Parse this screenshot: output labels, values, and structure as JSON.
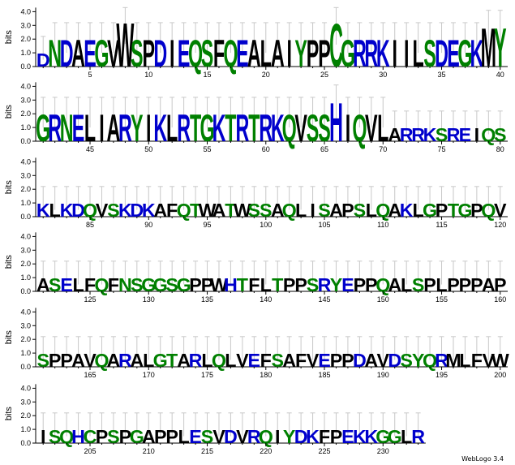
{
  "chart_data": {
    "type": "sequence_logo",
    "ylabel": "bits",
    "ylim": [
      0,
      4.3
    ],
    "yticks": [
      "0.0",
      "1.0",
      "2.0",
      "3.0",
      "4.0"
    ],
    "residues_per_row": 40,
    "colors": {
      "polar": "#008000",
      "basic": "#0000cc",
      "acidic": "#0000cc",
      "hydrophobic": "#000000"
    },
    "positions": [
      {
        "pos": 1,
        "aa": "D",
        "bits": 1.0
      },
      {
        "pos": 2,
        "aa": "N",
        "bits": 2.0
      },
      {
        "pos": 3,
        "aa": "D",
        "bits": 2.0
      },
      {
        "pos": 4,
        "aa": "A",
        "bits": 2.0
      },
      {
        "pos": 5,
        "aa": "E",
        "bits": 2.0
      },
      {
        "pos": 6,
        "aa": "G",
        "bits": 2.0
      },
      {
        "pos": 7,
        "aa": "V",
        "bits": 2.0
      },
      {
        "pos": 8,
        "aa": "W",
        "bits": 3.3
      },
      {
        "pos": 9,
        "aa": "S",
        "bits": 2.0
      },
      {
        "pos": 10,
        "aa": "P",
        "bits": 2.0
      },
      {
        "pos": 11,
        "aa": "D",
        "bits": 2.0
      },
      {
        "pos": 12,
        "aa": "I",
        "bits": 2.0
      },
      {
        "pos": 13,
        "aa": "E",
        "bits": 2.0
      },
      {
        "pos": 14,
        "aa": "Q",
        "bits": 2.0
      },
      {
        "pos": 15,
        "aa": "S",
        "bits": 2.0
      },
      {
        "pos": 16,
        "aa": "F",
        "bits": 2.0
      },
      {
        "pos": 17,
        "aa": "Q",
        "bits": 2.0
      },
      {
        "pos": 18,
        "aa": "E",
        "bits": 2.0
      },
      {
        "pos": 19,
        "aa": "A",
        "bits": 2.0
      },
      {
        "pos": 20,
        "aa": "L",
        "bits": 2.0
      },
      {
        "pos": 21,
        "aa": "A",
        "bits": 2.0
      },
      {
        "pos": 22,
        "aa": "I",
        "bits": 2.0
      },
      {
        "pos": 23,
        "aa": "Y",
        "bits": 2.0
      },
      {
        "pos": 24,
        "aa": "P",
        "bits": 2.0
      },
      {
        "pos": 25,
        "aa": "P",
        "bits": 2.0
      },
      {
        "pos": 26,
        "aa": "C",
        "bits": 3.2
      },
      {
        "pos": 27,
        "aa": "G",
        "bits": 2.0
      },
      {
        "pos": 28,
        "aa": "R",
        "bits": 2.0
      },
      {
        "pos": 29,
        "aa": "R",
        "bits": 2.0
      },
      {
        "pos": 30,
        "aa": "K",
        "bits": 2.0
      },
      {
        "pos": 31,
        "aa": "I",
        "bits": 2.0
      },
      {
        "pos": 32,
        "aa": "I",
        "bits": 2.0
      },
      {
        "pos": 33,
        "aa": "L",
        "bits": 2.0
      },
      {
        "pos": 34,
        "aa": "S",
        "bits": 2.0
      },
      {
        "pos": 35,
        "aa": "D",
        "bits": 2.0
      },
      {
        "pos": 36,
        "aa": "E",
        "bits": 2.0
      },
      {
        "pos": 37,
        "aa": "G",
        "bits": 2.0
      },
      {
        "pos": 38,
        "aa": "K",
        "bits": 2.0
      },
      {
        "pos": 39,
        "aa": "M",
        "bits": 2.9
      },
      {
        "pos": 40,
        "aa": "Y",
        "bits": 2.9
      },
      {
        "pos": 41,
        "aa": "G",
        "bits": 2.0
      },
      {
        "pos": 42,
        "aa": "R",
        "bits": 2.0
      },
      {
        "pos": 43,
        "aa": "N",
        "bits": 2.0
      },
      {
        "pos": 44,
        "aa": "E",
        "bits": 2.0
      },
      {
        "pos": 45,
        "aa": "L",
        "bits": 2.0
      },
      {
        "pos": 46,
        "aa": "I",
        "bits": 2.0
      },
      {
        "pos": 47,
        "aa": "A",
        "bits": 2.0
      },
      {
        "pos": 48,
        "aa": "R",
        "bits": 2.0
      },
      {
        "pos": 49,
        "aa": "Y",
        "bits": 2.0
      },
      {
        "pos": 50,
        "aa": "I",
        "bits": 2.0
      },
      {
        "pos": 51,
        "aa": "K",
        "bits": 2.0
      },
      {
        "pos": 52,
        "aa": "L",
        "bits": 2.0
      },
      {
        "pos": 53,
        "aa": "R",
        "bits": 2.0
      },
      {
        "pos": 54,
        "aa": "T",
        "bits": 2.0
      },
      {
        "pos": 55,
        "aa": "G",
        "bits": 2.0
      },
      {
        "pos": 56,
        "aa": "K",
        "bits": 2.0
      },
      {
        "pos": 57,
        "aa": "T",
        "bits": 2.0
      },
      {
        "pos": 58,
        "aa": "R",
        "bits": 2.0
      },
      {
        "pos": 59,
        "aa": "T",
        "bits": 2.0
      },
      {
        "pos": 60,
        "aa": "R",
        "bits": 2.0
      },
      {
        "pos": 61,
        "aa": "K",
        "bits": 2.0
      },
      {
        "pos": 62,
        "aa": "Q",
        "bits": 2.0
      },
      {
        "pos": 63,
        "aa": "V",
        "bits": 2.0
      },
      {
        "pos": 64,
        "aa": "S",
        "bits": 2.0
      },
      {
        "pos": 65,
        "aa": "S",
        "bits": 2.0
      },
      {
        "pos": 66,
        "aa": "H",
        "bits": 2.9
      },
      {
        "pos": 67,
        "aa": "I",
        "bits": 2.0
      },
      {
        "pos": 68,
        "aa": "Q",
        "bits": 2.0
      },
      {
        "pos": 69,
        "aa": "V",
        "bits": 2.0
      },
      {
        "pos": 70,
        "aa": "L",
        "bits": 2.0
      },
      {
        "pos": 71,
        "aa": "A",
        "bits": 1.0
      },
      {
        "pos": 72,
        "aa": "R",
        "bits": 1.0
      },
      {
        "pos": 73,
        "aa": "R",
        "bits": 1.0
      },
      {
        "pos": 74,
        "aa": "K",
        "bits": 1.0
      },
      {
        "pos": 75,
        "aa": "S",
        "bits": 1.0
      },
      {
        "pos": 76,
        "aa": "R",
        "bits": 1.0
      },
      {
        "pos": 77,
        "aa": "E",
        "bits": 1.0
      },
      {
        "pos": 78,
        "aa": "I",
        "bits": 1.0
      },
      {
        "pos": 79,
        "aa": "Q",
        "bits": 1.0
      },
      {
        "pos": 80,
        "aa": "S",
        "bits": 1.0
      },
      {
        "pos": 81,
        "aa": "K",
        "bits": 1.0
      },
      {
        "pos": 82,
        "aa": "L",
        "bits": 1.0
      },
      {
        "pos": 83,
        "aa": "K",
        "bits": 1.0
      },
      {
        "pos": 84,
        "aa": "D",
        "bits": 1.0
      },
      {
        "pos": 85,
        "aa": "Q",
        "bits": 1.0
      },
      {
        "pos": 86,
        "aa": "V",
        "bits": 1.0
      },
      {
        "pos": 87,
        "aa": "S",
        "bits": 1.0
      },
      {
        "pos": 88,
        "aa": "K",
        "bits": 1.0
      },
      {
        "pos": 89,
        "aa": "D",
        "bits": 1.0
      },
      {
        "pos": 90,
        "aa": "K",
        "bits": 1.0
      },
      {
        "pos": 91,
        "aa": "A",
        "bits": 1.0
      },
      {
        "pos": 92,
        "aa": "F",
        "bits": 1.0
      },
      {
        "pos": 93,
        "aa": "Q",
        "bits": 1.0
      },
      {
        "pos": 94,
        "aa": "T",
        "bits": 1.0
      },
      {
        "pos": 95,
        "aa": "W",
        "bits": 1.0
      },
      {
        "pos": 96,
        "aa": "A",
        "bits": 1.0
      },
      {
        "pos": 97,
        "aa": "T",
        "bits": 1.0
      },
      {
        "pos": 98,
        "aa": "W",
        "bits": 1.0
      },
      {
        "pos": 99,
        "aa": "S",
        "bits": 1.0
      },
      {
        "pos": 100,
        "aa": "S",
        "bits": 1.0
      },
      {
        "pos": 101,
        "aa": "A",
        "bits": 1.0
      },
      {
        "pos": 102,
        "aa": "Q",
        "bits": 1.0
      },
      {
        "pos": 103,
        "aa": "L",
        "bits": 1.0
      },
      {
        "pos": 104,
        "aa": "I",
        "bits": 1.0
      },
      {
        "pos": 105,
        "aa": "S",
        "bits": 1.0
      },
      {
        "pos": 106,
        "aa": "A",
        "bits": 1.0
      },
      {
        "pos": 107,
        "aa": "P",
        "bits": 1.0
      },
      {
        "pos": 108,
        "aa": "S",
        "bits": 1.0
      },
      {
        "pos": 109,
        "aa": "L",
        "bits": 1.0
      },
      {
        "pos": 110,
        "aa": "Q",
        "bits": 1.0
      },
      {
        "pos": 111,
        "aa": "A",
        "bits": 1.0
      },
      {
        "pos": 112,
        "aa": "K",
        "bits": 1.0
      },
      {
        "pos": 113,
        "aa": "L",
        "bits": 1.0
      },
      {
        "pos": 114,
        "aa": "G",
        "bits": 1.0
      },
      {
        "pos": 115,
        "aa": "P",
        "bits": 1.0
      },
      {
        "pos": 116,
        "aa": "T",
        "bits": 1.0
      },
      {
        "pos": 117,
        "aa": "G",
        "bits": 1.0
      },
      {
        "pos": 118,
        "aa": "P",
        "bits": 1.0
      },
      {
        "pos": 119,
        "aa": "Q",
        "bits": 1.0
      },
      {
        "pos": 120,
        "aa": "V",
        "bits": 1.0
      },
      {
        "pos": 121,
        "aa": "A",
        "bits": 1.0
      },
      {
        "pos": 122,
        "aa": "S",
        "bits": 1.0
      },
      {
        "pos": 123,
        "aa": "E",
        "bits": 1.0
      },
      {
        "pos": 124,
        "aa": "L",
        "bits": 1.0
      },
      {
        "pos": 125,
        "aa": "F",
        "bits": 1.0
      },
      {
        "pos": 126,
        "aa": "Q",
        "bits": 1.0
      },
      {
        "pos": 127,
        "aa": "F",
        "bits": 1.0
      },
      {
        "pos": 128,
        "aa": "N",
        "bits": 1.0
      },
      {
        "pos": 129,
        "aa": "S",
        "bits": 1.0
      },
      {
        "pos": 130,
        "aa": "G",
        "bits": 1.0
      },
      {
        "pos": 131,
        "aa": "G",
        "bits": 1.0
      },
      {
        "pos": 132,
        "aa": "S",
        "bits": 1.0
      },
      {
        "pos": 133,
        "aa": "G",
        "bits": 1.0
      },
      {
        "pos": 134,
        "aa": "P",
        "bits": 1.0
      },
      {
        "pos": 135,
        "aa": "P",
        "bits": 1.0
      },
      {
        "pos": 136,
        "aa": "W",
        "bits": 1.0
      },
      {
        "pos": 137,
        "aa": "H",
        "bits": 1.0
      },
      {
        "pos": 138,
        "aa": "T",
        "bits": 1.0
      },
      {
        "pos": 139,
        "aa": "F",
        "bits": 1.0
      },
      {
        "pos": 140,
        "aa": "L",
        "bits": 1.0
      },
      {
        "pos": 141,
        "aa": "T",
        "bits": 1.0
      },
      {
        "pos": 142,
        "aa": "P",
        "bits": 1.0
      },
      {
        "pos": 143,
        "aa": "P",
        "bits": 1.0
      },
      {
        "pos": 144,
        "aa": "S",
        "bits": 1.0
      },
      {
        "pos": 145,
        "aa": "R",
        "bits": 1.0
      },
      {
        "pos": 146,
        "aa": "Y",
        "bits": 1.0
      },
      {
        "pos": 147,
        "aa": "E",
        "bits": 1.0
      },
      {
        "pos": 148,
        "aa": "P",
        "bits": 1.0
      },
      {
        "pos": 149,
        "aa": "P",
        "bits": 1.0
      },
      {
        "pos": 150,
        "aa": "Q",
        "bits": 1.0
      },
      {
        "pos": 151,
        "aa": "A",
        "bits": 1.0
      },
      {
        "pos": 152,
        "aa": "L",
        "bits": 1.0
      },
      {
        "pos": 153,
        "aa": "S",
        "bits": 1.0
      },
      {
        "pos": 154,
        "aa": "P",
        "bits": 1.0
      },
      {
        "pos": 155,
        "aa": "L",
        "bits": 1.0
      },
      {
        "pos": 156,
        "aa": "P",
        "bits": 1.0
      },
      {
        "pos": 157,
        "aa": "P",
        "bits": 1.0
      },
      {
        "pos": 158,
        "aa": "P",
        "bits": 1.0
      },
      {
        "pos": 159,
        "aa": "A",
        "bits": 1.0
      },
      {
        "pos": 160,
        "aa": "P",
        "bits": 1.0
      },
      {
        "pos": 161,
        "aa": "S",
        "bits": 1.0
      },
      {
        "pos": 162,
        "aa": "P",
        "bits": 1.0
      },
      {
        "pos": 163,
        "aa": "P",
        "bits": 1.0
      },
      {
        "pos": 164,
        "aa": "A",
        "bits": 1.0
      },
      {
        "pos": 165,
        "aa": "V",
        "bits": 1.0
      },
      {
        "pos": 166,
        "aa": "Q",
        "bits": 1.0
      },
      {
        "pos": 167,
        "aa": "A",
        "bits": 1.0
      },
      {
        "pos": 168,
        "aa": "R",
        "bits": 1.0
      },
      {
        "pos": 169,
        "aa": "A",
        "bits": 1.0
      },
      {
        "pos": 170,
        "aa": "L",
        "bits": 1.0
      },
      {
        "pos": 171,
        "aa": "G",
        "bits": 1.0
      },
      {
        "pos": 172,
        "aa": "T",
        "bits": 1.0
      },
      {
        "pos": 173,
        "aa": "A",
        "bits": 1.0
      },
      {
        "pos": 174,
        "aa": "R",
        "bits": 1.0
      },
      {
        "pos": 175,
        "aa": "L",
        "bits": 1.0
      },
      {
        "pos": 176,
        "aa": "Q",
        "bits": 1.0
      },
      {
        "pos": 177,
        "aa": "L",
        "bits": 1.0
      },
      {
        "pos": 178,
        "aa": "V",
        "bits": 1.0
      },
      {
        "pos": 179,
        "aa": "E",
        "bits": 1.0
      },
      {
        "pos": 180,
        "aa": "F",
        "bits": 1.0
      },
      {
        "pos": 181,
        "aa": "S",
        "bits": 1.0
      },
      {
        "pos": 182,
        "aa": "A",
        "bits": 1.0
      },
      {
        "pos": 183,
        "aa": "F",
        "bits": 1.0
      },
      {
        "pos": 184,
        "aa": "V",
        "bits": 1.0
      },
      {
        "pos": 185,
        "aa": "E",
        "bits": 1.0
      },
      {
        "pos": 186,
        "aa": "P",
        "bits": 1.0
      },
      {
        "pos": 187,
        "aa": "P",
        "bits": 1.0
      },
      {
        "pos": 188,
        "aa": "D",
        "bits": 1.0
      },
      {
        "pos": 189,
        "aa": "A",
        "bits": 1.0
      },
      {
        "pos": 190,
        "aa": "V",
        "bits": 1.0
      },
      {
        "pos": 191,
        "aa": "D",
        "bits": 1.0
      },
      {
        "pos": 192,
        "aa": "S",
        "bits": 1.0
      },
      {
        "pos": 193,
        "aa": "Y",
        "bits": 1.0
      },
      {
        "pos": 194,
        "aa": "Q",
        "bits": 1.0
      },
      {
        "pos": 195,
        "aa": "R",
        "bits": 1.0
      },
      {
        "pos": 196,
        "aa": "M",
        "bits": 1.0
      },
      {
        "pos": 197,
        "aa": "L",
        "bits": 1.0
      },
      {
        "pos": 198,
        "aa": "F",
        "bits": 1.0
      },
      {
        "pos": 199,
        "aa": "V",
        "bits": 1.0
      },
      {
        "pos": 200,
        "aa": "W",
        "bits": 1.0
      },
      {
        "pos": 201,
        "aa": "I",
        "bits": 1.0
      },
      {
        "pos": 202,
        "aa": "S",
        "bits": 1.0
      },
      {
        "pos": 203,
        "aa": "Q",
        "bits": 1.0
      },
      {
        "pos": 204,
        "aa": "H",
        "bits": 1.0
      },
      {
        "pos": 205,
        "aa": "C",
        "bits": 1.0
      },
      {
        "pos": 206,
        "aa": "P",
        "bits": 1.0
      },
      {
        "pos": 207,
        "aa": "S",
        "bits": 1.0
      },
      {
        "pos": 208,
        "aa": "P",
        "bits": 1.0
      },
      {
        "pos": 209,
        "aa": "G",
        "bits": 1.0
      },
      {
        "pos": 210,
        "aa": "A",
        "bits": 1.0
      },
      {
        "pos": 211,
        "aa": "P",
        "bits": 1.0
      },
      {
        "pos": 212,
        "aa": "P",
        "bits": 1.0
      },
      {
        "pos": 213,
        "aa": "L",
        "bits": 1.0
      },
      {
        "pos": 214,
        "aa": "E",
        "bits": 1.0
      },
      {
        "pos": 215,
        "aa": "S",
        "bits": 1.0
      },
      {
        "pos": 216,
        "aa": "V",
        "bits": 1.0
      },
      {
        "pos": 217,
        "aa": "D",
        "bits": 1.0
      },
      {
        "pos": 218,
        "aa": "V",
        "bits": 1.0
      },
      {
        "pos": 219,
        "aa": "R",
        "bits": 1.0
      },
      {
        "pos": 220,
        "aa": "Q",
        "bits": 1.0
      },
      {
        "pos": 221,
        "aa": "I",
        "bits": 1.0
      },
      {
        "pos": 222,
        "aa": "Y",
        "bits": 1.0
      },
      {
        "pos": 223,
        "aa": "D",
        "bits": 1.0
      },
      {
        "pos": 224,
        "aa": "K",
        "bits": 1.0
      },
      {
        "pos": 225,
        "aa": "F",
        "bits": 1.0
      },
      {
        "pos": 226,
        "aa": "P",
        "bits": 1.0
      },
      {
        "pos": 227,
        "aa": "E",
        "bits": 1.0
      },
      {
        "pos": 228,
        "aa": "K",
        "bits": 1.0
      },
      {
        "pos": 229,
        "aa": "K",
        "bits": 1.0
      },
      {
        "pos": 230,
        "aa": "G",
        "bits": 1.0
      },
      {
        "pos": 231,
        "aa": "G",
        "bits": 1.0
      },
      {
        "pos": 232,
        "aa": "L",
        "bits": 1.0
      },
      {
        "pos": 233,
        "aa": "R",
        "bits": 1.0
      }
    ]
  },
  "footer": {
    "credit": "WebLogo 3.4"
  }
}
